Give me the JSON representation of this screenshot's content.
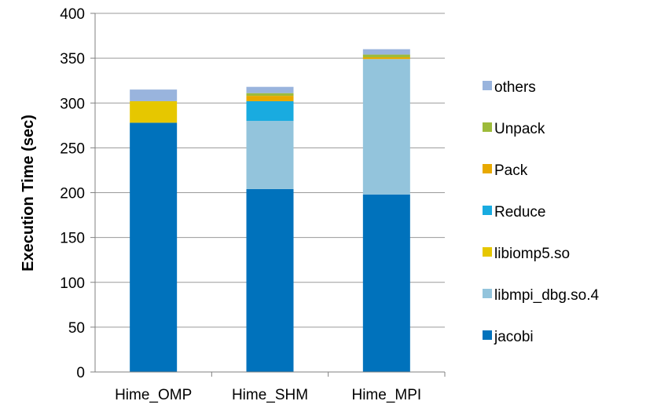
{
  "chart_data": {
    "type": "bar",
    "stacked": true,
    "ylabel": "Execution Time (sec)",
    "xlabel": "",
    "title": "",
    "ylim": [
      0,
      400
    ],
    "yticks": [
      "0",
      "50",
      "100",
      "150",
      "200",
      "250",
      "300",
      "350",
      "400"
    ],
    "grid": true,
    "legend_position": "right",
    "categories": [
      "Hime_OMP",
      "Hime_SHM",
      "Hime_MPI"
    ],
    "series": [
      {
        "name": "jacobi",
        "color": "#0072bc",
        "values": [
          278,
          204,
          198
        ]
      },
      {
        "name": "libmpi_dbg.so.4",
        "color": "#93c4dc",
        "values": [
          0,
          76,
          151
        ]
      },
      {
        "name": "libiomp5.so",
        "color": "#e6c700",
        "values": [
          24,
          0,
          0
        ]
      },
      {
        "name": "Reduce",
        "color": "#19abe0",
        "values": [
          0,
          22,
          0
        ]
      },
      {
        "name": "Pack",
        "color": "#e8a900",
        "values": [
          0,
          6,
          2
        ]
      },
      {
        "name": "Unpack",
        "color": "#9dbb3a",
        "values": [
          0,
          3,
          3
        ]
      },
      {
        "name": "others",
        "color": "#99b4dd",
        "values": [
          13,
          7,
          6
        ]
      }
    ]
  }
}
